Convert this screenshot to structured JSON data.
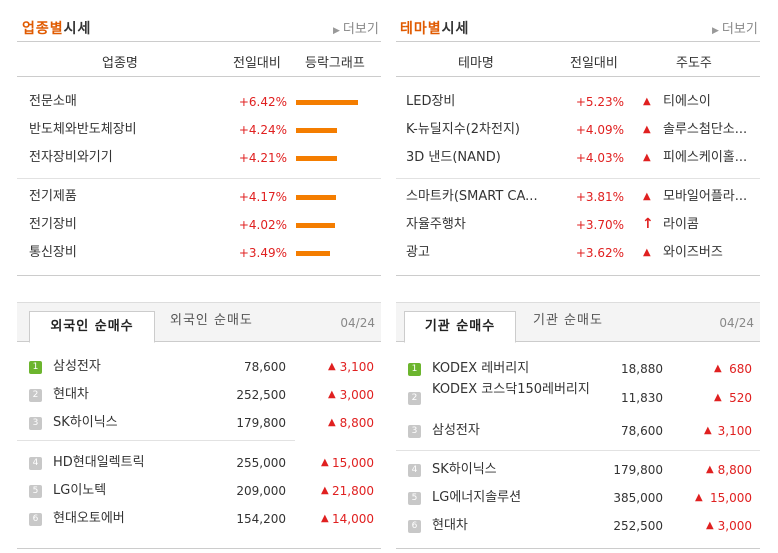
{
  "industry": {
    "title_accent": "업종별",
    "title_rest": "시세",
    "more": "더보기",
    "headers": [
      "업종명",
      "전일대비",
      "등락그래프"
    ],
    "rows": [
      {
        "name": "전문소매",
        "rate": "+6.42%",
        "rate_value": 6.42
      },
      {
        "name": "반도체와반도체장비",
        "rate": "+4.24%",
        "rate_value": 4.24
      },
      {
        "name": "전자장비와기기",
        "rate": "+4.21%",
        "rate_value": 4.21
      },
      {
        "name": "전기제품",
        "rate": "+4.17%",
        "rate_value": 4.17
      },
      {
        "name": "전기장비",
        "rate": "+4.02%",
        "rate_value": 4.02
      },
      {
        "name": "통신장비",
        "rate": "+3.49%",
        "rate_value": 3.49
      }
    ]
  },
  "theme": {
    "title_accent": "테마별",
    "title_rest": "시세",
    "more": "더보기",
    "headers": [
      "테마명",
      "전일대비",
      "주도주"
    ],
    "rows": [
      {
        "name": "LED장비",
        "rate": "+5.23%",
        "leader": "티에스이",
        "icon": "triangle-up-icon"
      },
      {
        "name": "K-뉴딜지수(2차전지)",
        "rate": "+4.09%",
        "leader": "솔루스첨단소...",
        "icon": "triangle-up-icon"
      },
      {
        "name": "3D 낸드(NAND)",
        "rate": "+4.03%",
        "leader": "피에스케이홀...",
        "icon": "triangle-up-icon"
      },
      {
        "name": "스마트카(SMART CA...",
        "rate": "+3.81%",
        "leader": "모바일어플라...",
        "icon": "triangle-up-icon"
      },
      {
        "name": "자율주행차",
        "rate": "+3.70%",
        "leader": "라이콤",
        "icon": "upper-limit-arrow-icon"
      },
      {
        "name": "광고",
        "rate": "+3.62%",
        "leader": "와이즈버즈",
        "icon": "triangle-up-icon"
      }
    ]
  },
  "foreign": {
    "tab_active": "외국인 순매수",
    "tab_inactive": "외국인 순매도",
    "date": "04/24",
    "rows": [
      {
        "rank": "1",
        "name": "삼성전자",
        "price": "78,600",
        "change": "3,100"
      },
      {
        "rank": "2",
        "name": "현대차",
        "price": "252,500",
        "change": "3,000"
      },
      {
        "rank": "3",
        "name": "SK하이닉스",
        "price": "179,800",
        "change": "8,800"
      },
      {
        "rank": "4",
        "name": "HD현대일렉트릭",
        "price": "255,000",
        "change": "15,000"
      },
      {
        "rank": "5",
        "name": "LG이노텍",
        "price": "209,000",
        "change": "21,800"
      },
      {
        "rank": "6",
        "name": "현대오토에버",
        "price": "154,200",
        "change": "14,000"
      }
    ]
  },
  "institution": {
    "tab_active": "기관 순매수",
    "tab_inactive": "기관 순매도",
    "date": "04/24",
    "rows": [
      {
        "rank": "1",
        "name": "KODEX 레버리지",
        "price": "18,880",
        "change": "680"
      },
      {
        "rank": "2",
        "name": "KODEX 코스닥150레버리지",
        "price": "11,830",
        "change": "520"
      },
      {
        "rank": "3",
        "name": "삼성전자",
        "price": "78,600",
        "change": "3,100"
      },
      {
        "rank": "4",
        "name": "SK하이닉스",
        "price": "179,800",
        "change": "8,800"
      },
      {
        "rank": "5",
        "name": "LG에너지솔루션",
        "price": "385,000",
        "change": "15,000"
      },
      {
        "rank": "6",
        "name": "현대차",
        "price": "252,500",
        "change": "3,000"
      }
    ]
  },
  "colors": {
    "accent": "#e05a00",
    "up": "#e02020",
    "bar": "#f47d00",
    "rank_top": "#6cb52e"
  }
}
